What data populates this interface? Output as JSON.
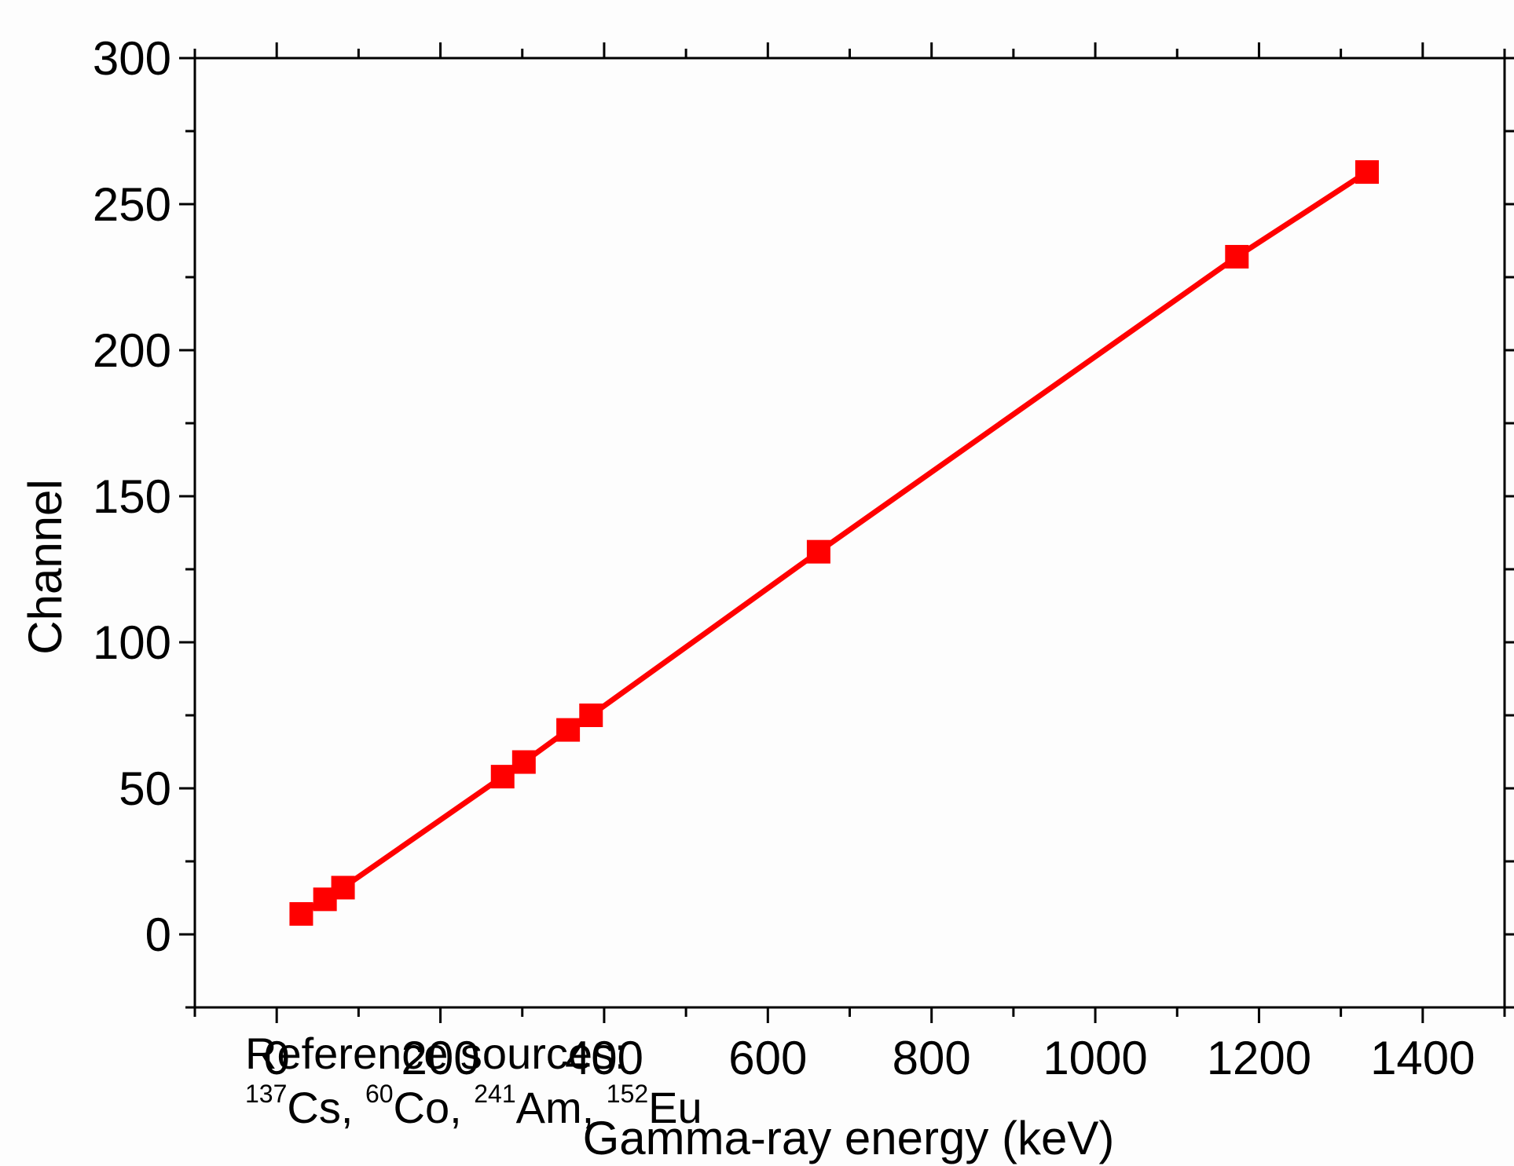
{
  "chart_data": {
    "type": "line",
    "xlabel": "Gamma-ray energy  (keV)",
    "ylabel": "Channel",
    "xlim": [
      -100,
      1500
    ],
    "ylim": [
      -25,
      300
    ],
    "xticks": [
      0,
      200,
      400,
      600,
      800,
      1000,
      1200,
      1400
    ],
    "yticks": [
      0,
      50,
      100,
      150,
      200,
      250,
      300
    ],
    "grid": false,
    "markers": "filled squares",
    "series": [
      {
        "color": "#ff0000",
        "x": [
          30,
          59,
          81,
          276,
          302,
          356,
          384,
          662,
          1173,
          1332
        ],
        "y": [
          7,
          12,
          16,
          54,
          59,
          70,
          75,
          131,
          232,
          261
        ]
      }
    ],
    "annotation": {
      "line1": "Reference sources:",
      "sources": [
        {
          "mass": "137",
          "symbol": "Cs, "
        },
        {
          "mass": "60",
          "symbol": "Co, "
        },
        {
          "mass": "241",
          "symbol": "Am, "
        },
        {
          "mass": "152",
          "symbol": "Eu"
        }
      ]
    }
  }
}
